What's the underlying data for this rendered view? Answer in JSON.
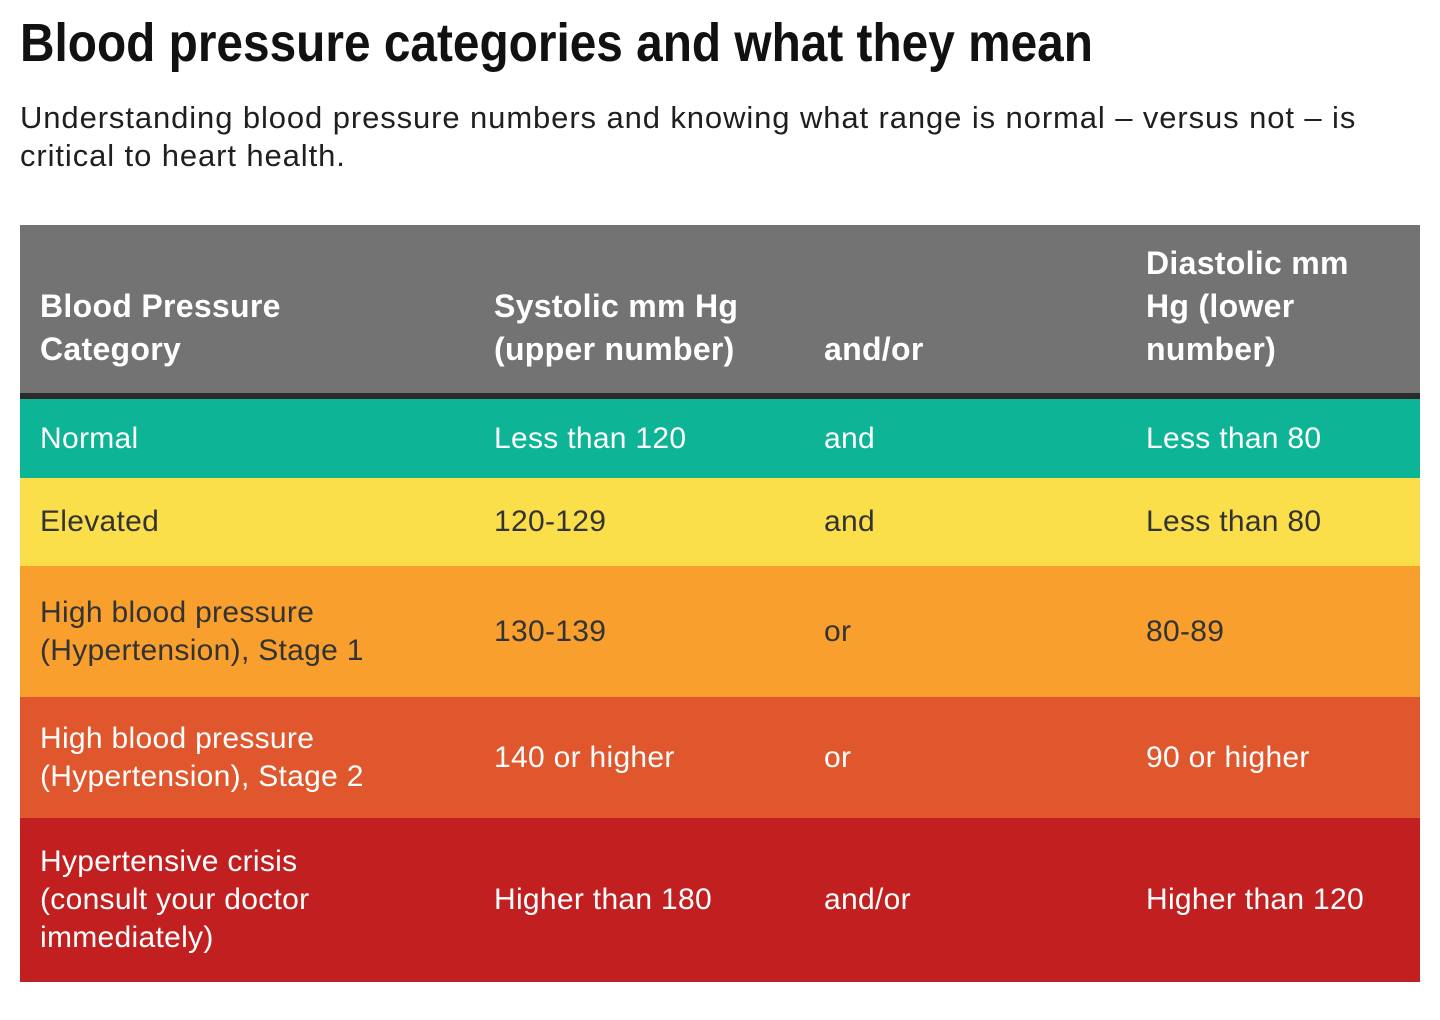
{
  "title": "Blood pressure categories and what they mean",
  "intro": {
    "lines": [
      "Understanding blood pressure numbers and knowing what range is normal – versus not – is",
      "critical to heart health."
    ]
  },
  "colors": {
    "header_bg": "#737373",
    "header_divider": "#2B2B2B",
    "normal": "#0EB496",
    "elevated": "#FBDF4A",
    "stage1": "#F99F2D",
    "stage2": "#E0562D",
    "crisis": "#C22020",
    "light_text": "#FFFFFF",
    "dark_text": "#333333"
  },
  "table": {
    "headers": {
      "category": [
        "Blood Pressure",
        "Category"
      ],
      "systolic": [
        "Systolic mm Hg",
        "(upper number)"
      ],
      "connector": [
        "and/or"
      ],
      "diastolic": [
        "Diastolic mm",
        "Hg (lower",
        "number)"
      ]
    },
    "rows": [
      {
        "category": [
          "Normal"
        ],
        "systolic": "Less than 120",
        "connector": "and",
        "diastolic": "Less than 80"
      },
      {
        "category": [
          "Elevated"
        ],
        "systolic": "120-129",
        "connector": "and",
        "diastolic": "Less than 80"
      },
      {
        "category": [
          "High blood pressure",
          "(Hypertension), Stage 1"
        ],
        "systolic": "130-139",
        "connector": "or",
        "diastolic": "80-89"
      },
      {
        "category": [
          "High blood pressure",
          "(Hypertension), Stage 2"
        ],
        "systolic": "140 or higher",
        "connector": "or",
        "diastolic": "90 or higher"
      },
      {
        "category": [
          "Hypertensive crisis",
          "(consult your doctor",
          "immediately)"
        ],
        "systolic": "Higher than 180",
        "connector": "and/or",
        "diastolic": "Higher than 120"
      }
    ]
  }
}
